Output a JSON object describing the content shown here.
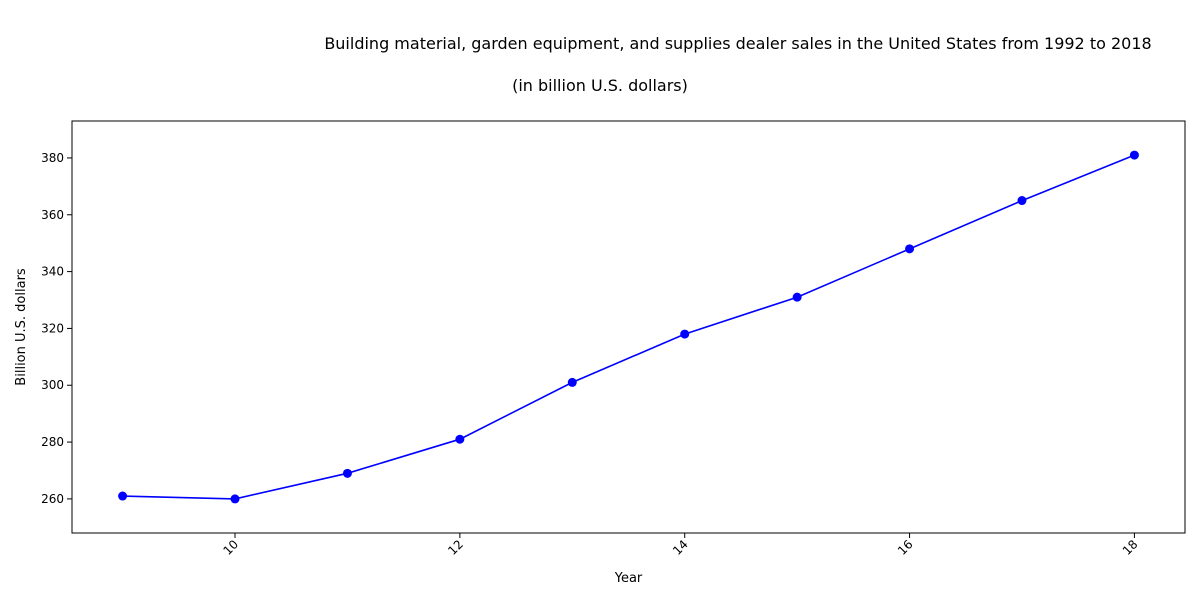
{
  "chart_data": {
    "type": "line",
    "title": "Building material, garden equipment, and supplies dealer sales in the United States from 1992 to 2018",
    "subtitle": "(in billion U.S. dollars)",
    "xlabel": "Year",
    "ylabel": "Billion U.S. dollars",
    "xlim": [
      8.55,
      18.45
    ],
    "ylim": [
      248,
      393
    ],
    "x_ticks": [
      10,
      12,
      14,
      16,
      18
    ],
    "y_ticks": [
      260,
      280,
      300,
      320,
      340,
      360,
      380
    ],
    "grid": false,
    "line_color": "#0000ff",
    "x": [
      9,
      10,
      11,
      12,
      13,
      14,
      15,
      16,
      17,
      18
    ],
    "values": [
      261,
      260,
      269,
      281,
      301,
      318,
      331,
      348,
      365,
      381
    ]
  }
}
